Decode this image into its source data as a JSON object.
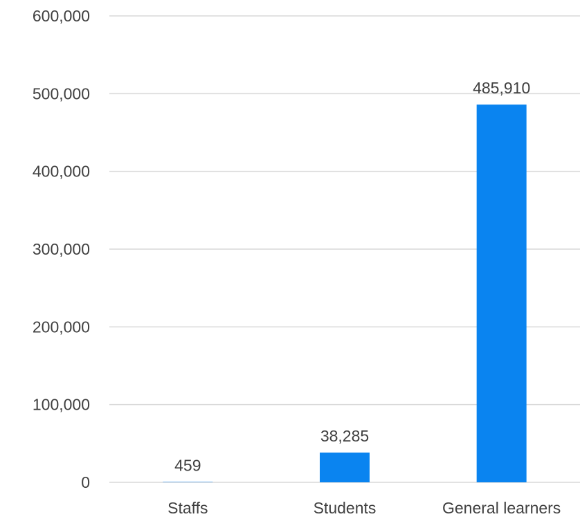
{
  "chart_data": {
    "type": "bar",
    "title": "",
    "xlabel": "",
    "ylabel": "",
    "categories": [
      "Staffs",
      "Students",
      "General learners"
    ],
    "values": [
      459,
      38285,
      485910
    ],
    "data_labels": [
      "459",
      "38,285",
      "485,910"
    ],
    "ylim": [
      0,
      600000
    ],
    "yticks": [
      0,
      100000,
      200000,
      300000,
      400000,
      500000,
      600000
    ],
    "ytick_labels": [
      "0",
      "100,000",
      "200,000",
      "300,000",
      "400,000",
      "500,000",
      "600,000"
    ],
    "grid": true,
    "legend": "none",
    "colors": {
      "bar": "#0A84F0",
      "grid": "#D9D9D9",
      "text": "#404040"
    }
  }
}
